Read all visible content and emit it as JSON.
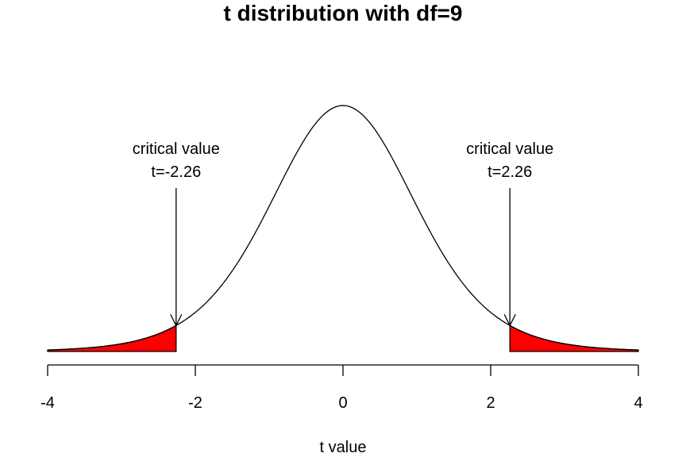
{
  "chart_data": {
    "type": "area",
    "title": "t distribution with df=9",
    "xlabel": "t value",
    "ylabel": "",
    "df": 9,
    "xlim": [
      -4,
      4
    ],
    "x_ticks": [
      -4,
      -2,
      0,
      2,
      4
    ],
    "tick_labels": [
      "-4",
      "-2",
      "0",
      "2",
      "4"
    ],
    "critical_values": [
      -2.26,
      2.26
    ],
    "shaded_regions": [
      {
        "from": -4,
        "to": -2.26,
        "color": "#ff0000"
      },
      {
        "from": 2.26,
        "to": 4,
        "color": "#ff0000"
      }
    ],
    "annotations": [
      {
        "line1": "critical value",
        "line2": "t=-2.26",
        "x": -2.26
      },
      {
        "line1": "critical value",
        "line2": "t=2.26",
        "x": 2.26
      }
    ],
    "grid": false
  }
}
